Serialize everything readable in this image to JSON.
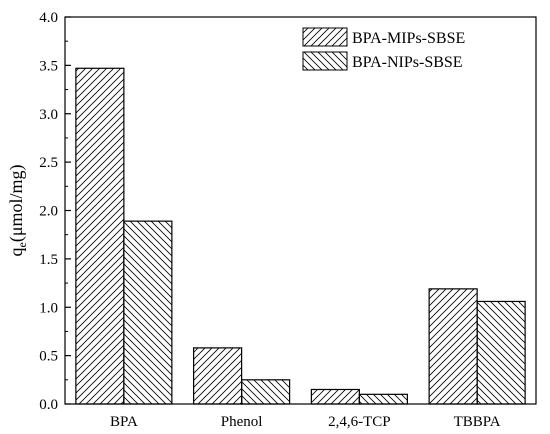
{
  "chart_data": {
    "type": "bar",
    "categories": [
      "BPA",
      "Phenol",
      "2,4,6-TCP",
      "TBBPA"
    ],
    "series": [
      {
        "name": "BPA-MIPs-SBSE",
        "values": [
          3.47,
          0.58,
          0.15,
          1.19
        ],
        "hatch": "forward"
      },
      {
        "name": "BPA-NIPs-SBSE",
        "values": [
          1.89,
          0.25,
          0.1,
          1.06
        ],
        "hatch": "backward"
      }
    ],
    "ylabel_main": "q",
    "ylabel_sub": "e",
    "ylabel_rest": "(μmol/mg)",
    "xlabel": "",
    "ylim": [
      0,
      4.0
    ],
    "yticks": [
      "0.0",
      "0.5",
      "1.0",
      "1.5",
      "2.0",
      "2.5",
      "3.0",
      "3.5",
      "4.0"
    ],
    "legend_position": "top-right",
    "grid": false,
    "colors": {
      "bar_stroke": "#000000",
      "bar_fill": "#ffffff",
      "hatch": "#000000"
    }
  }
}
